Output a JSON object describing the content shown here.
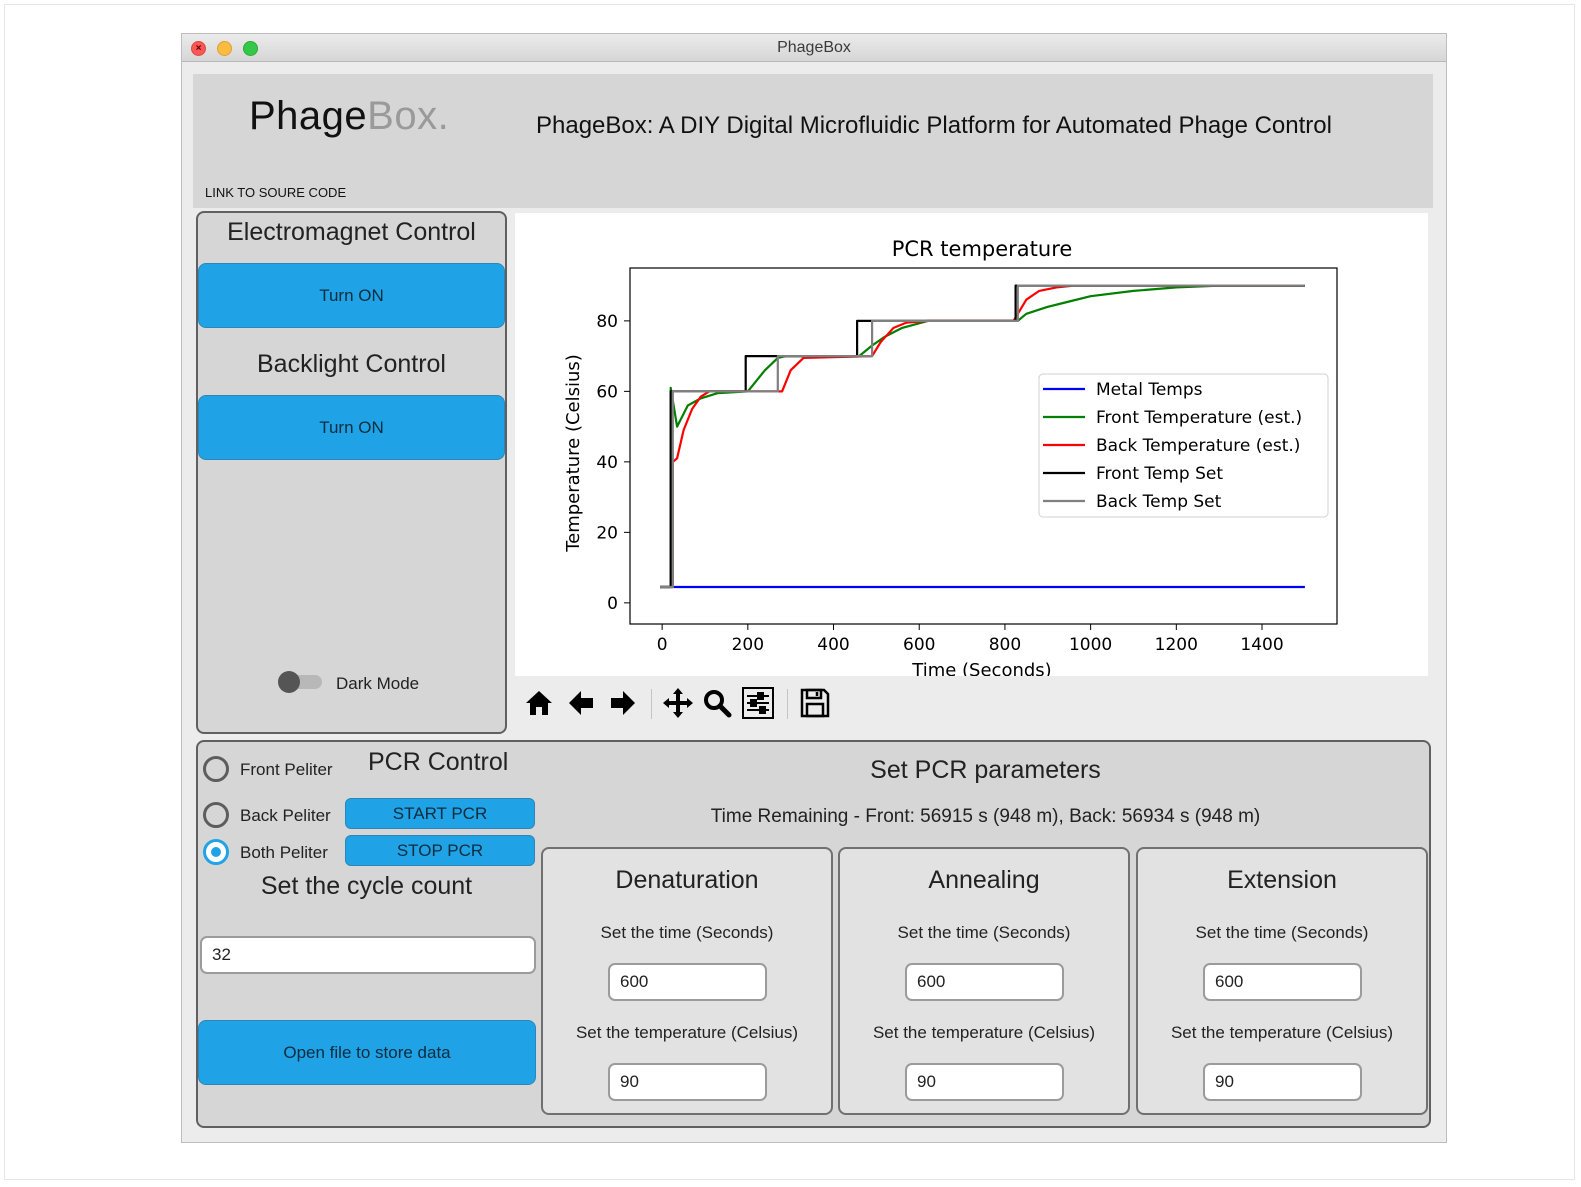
{
  "window": {
    "title": "PhageBox"
  },
  "header": {
    "logo_main": "Phage",
    "logo_secondary": "Box.",
    "title": "PhageBox: A DIY Digital Microfluidic Platform for Automated Phage Control",
    "source_link": "LINK TO SOURE CODE"
  },
  "left_panel": {
    "electromagnet_title": "Electromagnet Control",
    "electromagnet_button": "Turn ON",
    "backlight_title": "Backlight Control",
    "backlight_button": "Turn ON",
    "dark_mode_label": "Dark Mode",
    "dark_mode_on": false
  },
  "toolbar": {
    "tools": [
      "home-icon",
      "back-arrow-icon",
      "forward-arrow-icon",
      "pan-icon",
      "zoom-icon",
      "configure-subplots-icon",
      "save-icon"
    ]
  },
  "chart_data": {
    "type": "line",
    "title": "PCR temperature",
    "xlabel": "Time (Seconds)",
    "ylabel": "Temperature (Celsius)",
    "xlim": [
      -75,
      1575
    ],
    "ylim": [
      -6,
      95
    ],
    "xticks": [
      0,
      200,
      400,
      600,
      800,
      1000,
      1200,
      1400
    ],
    "yticks": [
      0,
      20,
      40,
      60,
      80
    ],
    "legend_position": "center-right",
    "series": [
      {
        "name": "Metal Temps",
        "color": "#0000ff",
        "x": [
          -5,
          1500
        ],
        "y": [
          4.5,
          4.5
        ]
      },
      {
        "name": "Front Temperature (est.)",
        "color": "#008000",
        "x": [
          -5,
          20,
          20,
          35,
          60,
          90,
          130,
          200,
          200,
          240,
          270,
          290,
          460,
          460,
          490,
          520,
          560,
          620,
          700,
          830,
          830,
          850,
          900,
          950,
          1000,
          1100,
          1200,
          1300,
          1500
        ],
        "y": [
          4.5,
          4.5,
          61,
          50,
          56,
          58,
          59.5,
          60,
          60,
          66,
          69.5,
          70,
          70,
          70,
          73,
          75.5,
          78,
          80,
          80,
          80,
          80,
          82,
          84,
          85.5,
          87,
          88.5,
          89.5,
          90,
          90
        ]
      },
      {
        "name": "Back Temperature (est.)",
        "color": "#ff0000",
        "x": [
          -5,
          25,
          25,
          35,
          50,
          70,
          90,
          110,
          280,
          300,
          330,
          490,
          510,
          540,
          570,
          620,
          820,
          830,
          850,
          880,
          920,
          960,
          1000,
          1500
        ],
        "y": [
          4.5,
          4.5,
          40,
          41,
          49,
          55,
          58.5,
          60,
          60,
          66,
          69.5,
          70,
          74,
          78,
          79.5,
          80,
          80,
          82,
          86,
          88.5,
          89.5,
          90,
          90,
          90
        ]
      },
      {
        "name": "Front Temp Set",
        "color": "#000000",
        "x": [
          -5,
          20,
          20,
          195,
          195,
          455,
          455,
          825,
          825,
          1500
        ],
        "y": [
          4.5,
          4.5,
          60,
          60,
          70,
          70,
          80,
          80,
          90,
          90
        ]
      },
      {
        "name": "Back Temp Set",
        "color": "#808080",
        "x": [
          -5,
          25,
          25,
          270,
          270,
          490,
          490,
          830,
          830,
          1500
        ],
        "y": [
          4.5,
          4.5,
          60,
          60,
          70,
          70,
          80,
          80,
          90,
          90
        ]
      }
    ]
  },
  "pcr_control": {
    "title": "PCR Control",
    "radios": [
      {
        "label": "Front Peliter",
        "checked": false
      },
      {
        "label": "Back Peliter",
        "checked": false
      },
      {
        "label": "Both Peliter",
        "checked": true
      }
    ],
    "start_button": "START PCR",
    "stop_button": "STOP PCR",
    "cycle_title": "Set the cycle count",
    "cycle_value": "32",
    "open_file_button": "Open file to store data",
    "params_title": "Set PCR parameters",
    "time_remaining": "Time Remaining - Front: 56915 s (948 m), Back: 56934 s (948 m)",
    "stages": [
      {
        "name": "Denaturation",
        "time_label": "Set the time (Seconds)",
        "time_value": "600",
        "temp_label": "Set the temperature (Celsius)",
        "temp_value": "90"
      },
      {
        "name": "Annealing",
        "time_label": "Set the time (Seconds)",
        "time_value": "600",
        "temp_label": "Set the temperature (Celsius)",
        "temp_value": "90"
      },
      {
        "name": "Extension",
        "time_label": "Set the time (Seconds)",
        "time_value": "600",
        "temp_label": "Set the temperature (Celsius)",
        "temp_value": "90"
      }
    ]
  }
}
